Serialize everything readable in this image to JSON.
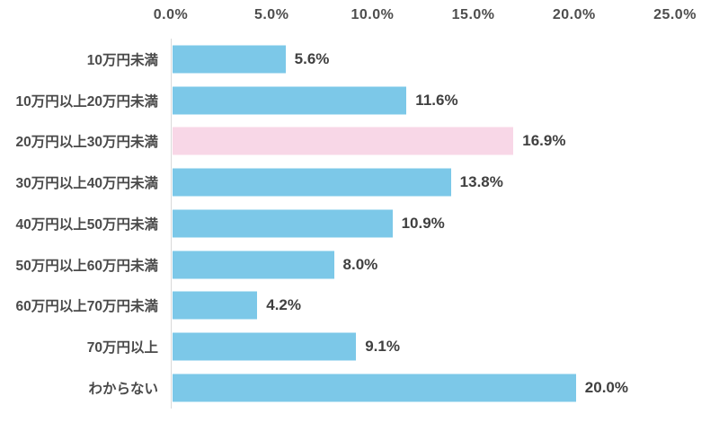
{
  "chart_data": {
    "type": "bar",
    "orientation": "horizontal",
    "title": "",
    "xlabel": "",
    "ylabel": "",
    "categories": [
      "10万円未満",
      "10万円以上20万円未満",
      "20万円以上30万円未満",
      "30万円以上40万円未満",
      "40万円以上50万円未満",
      "50万円以上60万円未満",
      "60万円以上70万円未満",
      "70万円以上",
      "わからない"
    ],
    "values": [
      5.6,
      11.6,
      16.9,
      13.8,
      10.9,
      8.0,
      4.2,
      9.1,
      20.0
    ],
    "value_labels": [
      "5.6%",
      "11.6%",
      "16.9%",
      "13.8%",
      "10.9%",
      "8.0%",
      "4.2%",
      "9.1%",
      "20.0%"
    ],
    "xlim": [
      0,
      25
    ],
    "x_ticks": [
      "0.0%",
      "5.0%",
      "10.0%",
      "15.0%",
      "20.0%",
      "25.0%"
    ],
    "x_tick_values": [
      0,
      5,
      10,
      15,
      20,
      25
    ],
    "axis_labels_position": "top",
    "grid": false,
    "legend": false,
    "highlighted_index": 2,
    "colors": {
      "bar": "#7cc8e8",
      "highlight_bar": "#f8d7e7",
      "axis_text": "#4d4d4d",
      "category_text": "#4a4a4a",
      "value_text": "#404040",
      "axis_line": "#d9d9d9",
      "background": "#ffffff"
    }
  }
}
